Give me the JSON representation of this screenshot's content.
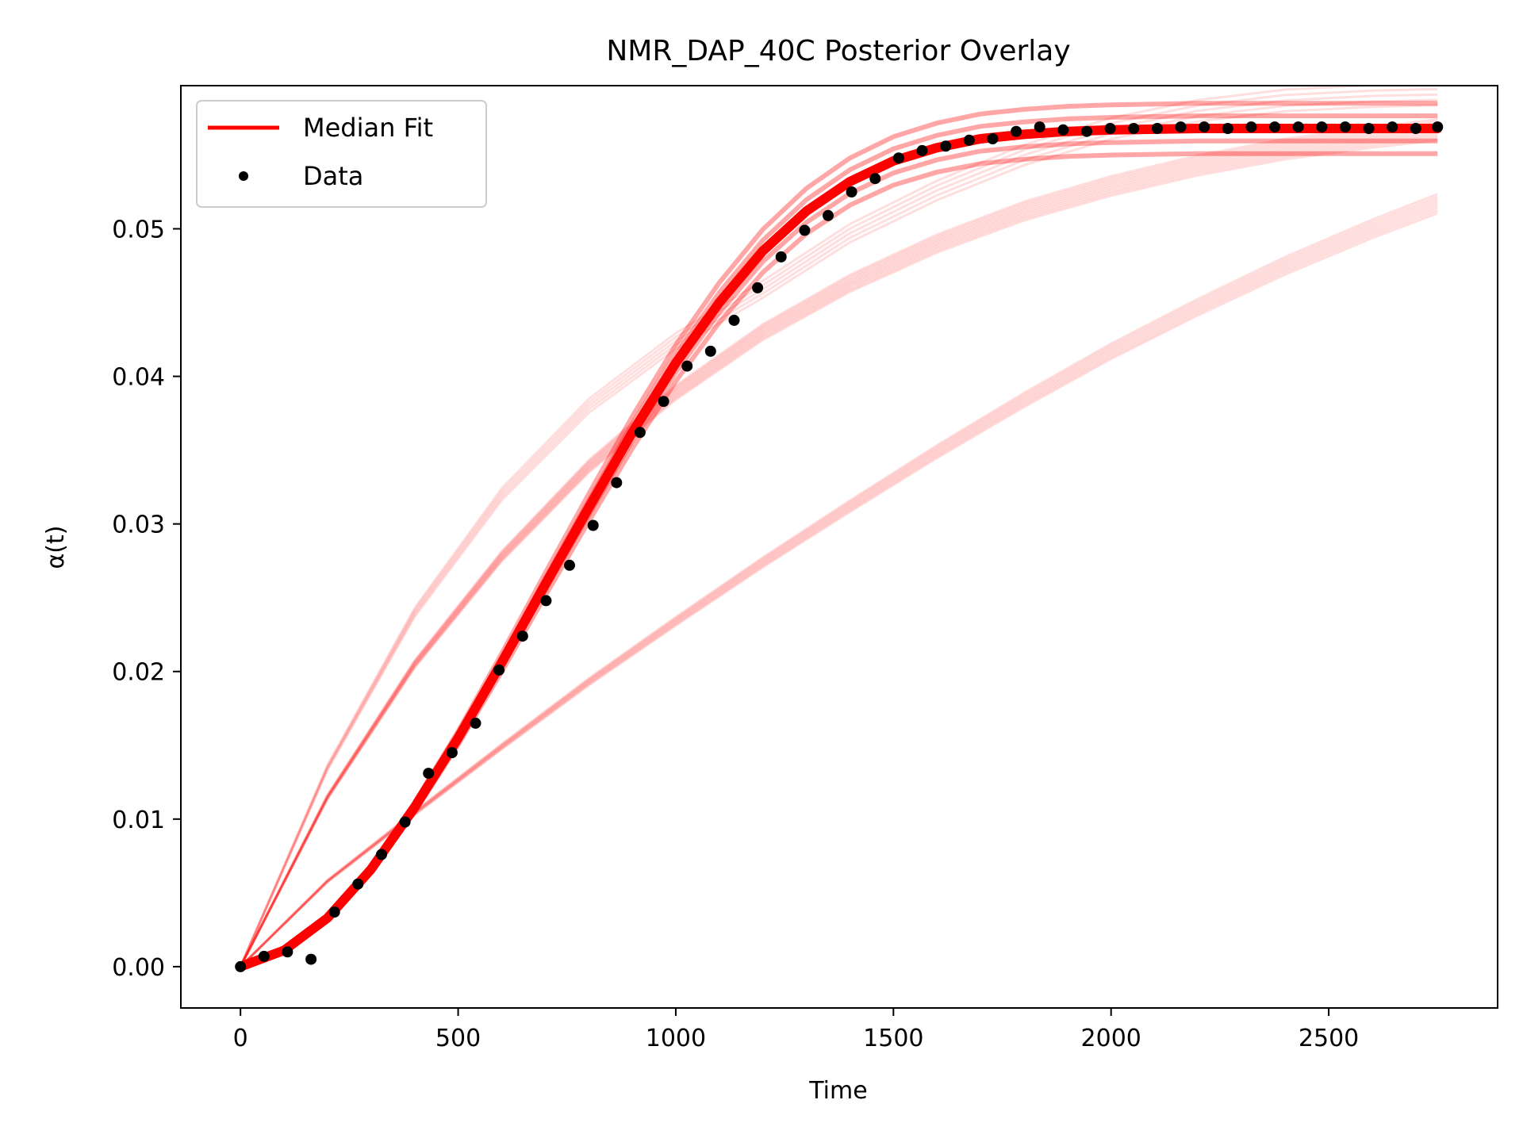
{
  "chart_data": {
    "type": "line",
    "title": "NMR_DAP_40C Posterior Overlay",
    "xlabel": "Time",
    "ylabel": "α(t)",
    "xlim": [
      -137,
      2888
    ],
    "ylim": [
      -0.0028,
      0.0597
    ],
    "x_ticks": [
      0,
      500,
      1000,
      1500,
      2000,
      2500
    ],
    "x_tick_labels": [
      "0",
      "500",
      "1000",
      "1500",
      "2000",
      "2500"
    ],
    "y_ticks": [
      0.0,
      0.01,
      0.02,
      0.03,
      0.04,
      0.05
    ],
    "y_tick_labels": [
      "0.00",
      "0.01",
      "0.02",
      "0.03",
      "0.04",
      "0.05"
    ],
    "grid": false,
    "legend_position": "upper-left",
    "legend": [
      {
        "label": "Median Fit",
        "marker": "line",
        "color": "#ff0000"
      },
      {
        "label": "Data",
        "marker": "dot",
        "color": "#000000"
      }
    ],
    "median_fit": {
      "name": "Median Fit",
      "color": "#ff0000",
      "x": [
        0,
        100,
        200,
        300,
        400,
        500,
        600,
        700,
        800,
        900,
        1000,
        1100,
        1200,
        1300,
        1400,
        1500,
        1600,
        1700,
        1800,
        1900,
        2000,
        2200,
        2400,
        2600,
        2750
      ],
      "y": [
        0.0,
        0.0011,
        0.0033,
        0.0066,
        0.0108,
        0.0155,
        0.0206,
        0.0259,
        0.0311,
        0.0362,
        0.0409,
        0.045,
        0.0485,
        0.0512,
        0.0532,
        0.0546,
        0.0555,
        0.0561,
        0.0564,
        0.0566,
        0.0567,
        0.0568,
        0.0568,
        0.0568,
        0.0568
      ]
    },
    "posterior_samples": {
      "color": "#ff0000",
      "groups": [
        {
          "x": [
            0,
            200,
            400,
            600,
            800,
            1000,
            1200,
            1400,
            1600,
            1800,
            2000,
            2200,
            2400,
            2600,
            2750
          ],
          "y": [
            0.0,
            0.0115,
            0.0205,
            0.0278,
            0.0339,
            0.0389,
            0.043,
            0.0463,
            0.049,
            0.0512,
            0.0529,
            0.0543,
            0.0554,
            0.0562,
            0.0567
          ],
          "copies": 10
        },
        {
          "x": [
            0,
            200,
            400,
            600,
            800,
            1000,
            1200,
            1400,
            1600,
            1800,
            2000,
            2200,
            2400,
            2600,
            2750
          ],
          "y": [
            0.0,
            0.0135,
            0.024,
            0.032,
            0.038,
            0.0424,
            0.0459,
            0.0497,
            0.0526,
            0.055,
            0.0568,
            0.058,
            0.0587,
            0.059,
            0.0591
          ],
          "copies": 5
        },
        {
          "x": [
            0,
            200,
            400,
            600,
            800,
            1000,
            1200,
            1400,
            1600,
            1800,
            2000,
            2200,
            2400,
            2600,
            2750
          ],
          "y": [
            0.0,
            0.0058,
            0.0104,
            0.0149,
            0.0193,
            0.0234,
            0.0274,
            0.0312,
            0.0349,
            0.0384,
            0.0417,
            0.0447,
            0.0475,
            0.05,
            0.0517
          ],
          "copies": 8
        }
      ]
    },
    "data_points": {
      "name": "Data",
      "color": "#000000",
      "x": [
        0,
        54,
        108,
        162,
        216,
        270,
        324,
        378,
        432,
        486,
        540,
        594,
        648,
        702,
        756,
        810,
        864,
        918,
        972,
        1026,
        1080,
        1134,
        1188,
        1242,
        1296,
        1350,
        1404,
        1458,
        1512,
        1566,
        1620,
        1674,
        1728,
        1782,
        1836,
        1890,
        1944,
        1998,
        2052,
        2106,
        2160,
        2214,
        2268,
        2322,
        2376,
        2430,
        2484,
        2538,
        2592,
        2646,
        2700,
        2750
      ],
      "y": [
        0.0,
        0.0007,
        0.001,
        0.0005,
        0.0037,
        0.0056,
        0.0076,
        0.0098,
        0.0131,
        0.0145,
        0.0165,
        0.0201,
        0.0224,
        0.0248,
        0.0272,
        0.0299,
        0.0328,
        0.0362,
        0.0383,
        0.0407,
        0.0417,
        0.0438,
        0.046,
        0.0481,
        0.0499,
        0.0509,
        0.0525,
        0.0534,
        0.0548,
        0.0553,
        0.0556,
        0.056,
        0.0561,
        0.0566,
        0.0569,
        0.0567,
        0.0566,
        0.0568,
        0.0568,
        0.0568,
        0.0569,
        0.0569,
        0.0568,
        0.0569,
        0.0569,
        0.0569,
        0.0569,
        0.0569,
        0.0568,
        0.0569,
        0.0568,
        0.0569
      ]
    }
  }
}
